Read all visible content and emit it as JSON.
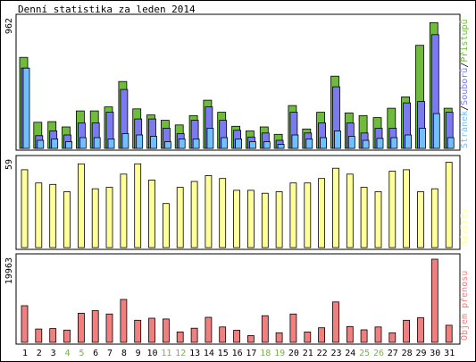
{
  "title": "Denní statistika za leden 2014",
  "chart_data": {
    "type": "bar",
    "categories": [
      "1",
      "2",
      "3",
      "4",
      "5",
      "6",
      "7",
      "8",
      "9",
      "10",
      "11",
      "12",
      "13",
      "14",
      "15",
      "16",
      "17",
      "18",
      "19",
      "20",
      "21",
      "22",
      "23",
      "24",
      "25",
      "26",
      "27",
      "28",
      "29",
      "30",
      "31"
    ],
    "weekend_days": [
      "4",
      "5",
      "11",
      "12",
      "18",
      "19",
      "25",
      "26"
    ],
    "panels": [
      {
        "id": "traffic",
        "max_label": "962",
        "ylim": [
          0,
          962
        ],
        "legend": [
          "Stránek",
          "Souborů",
          "Přístupů"
        ],
        "legend_separators": [
          "/",
          "/"
        ],
        "series": [
          {
            "name": "Přístupů",
            "color": "#6fbb3b",
            "values": [
              680,
              195,
              200,
              160,
              280,
              280,
              310,
              500,
              295,
              250,
              210,
              175,
              245,
              360,
              270,
              165,
              130,
              160,
              105,
              320,
              145,
              270,
              540,
              265,
              245,
              230,
              300,
              385,
              770,
              940,
              300
            ]
          },
          {
            "name": "Souborů",
            "color": "#7b7bef",
            "values": [
              600,
              95,
              130,
              100,
              190,
              190,
              270,
              440,
              220,
              220,
              150,
              110,
              210,
              310,
              210,
              135,
              85,
              115,
              60,
              270,
              115,
              190,
              460,
              190,
              115,
              150,
              150,
              340,
              350,
              850,
              270
            ]
          },
          {
            "name": "Stránek",
            "color": "#70c0ff",
            "values": [
              600,
              60,
              70,
              50,
              80,
              80,
              70,
              110,
              100,
              90,
              50,
              70,
              70,
              150,
              80,
              70,
              50,
              50,
              30,
              100,
              70,
              80,
              130,
              90,
              60,
              75,
              80,
              100,
              150,
              260,
              80
            ]
          }
        ]
      },
      {
        "id": "visits",
        "max_label": "59",
        "ylim": [
          0,
          59
        ],
        "legend": [
          "Návštěv"
        ],
        "series": [
          {
            "name": "Návštěv",
            "color": "#ffff99",
            "values": [
              53,
              44,
              43,
              38,
              57,
              40,
              41,
              50,
              57,
              46,
              30,
              41,
              45,
              49,
              47,
              39,
              39,
              37,
              38,
              44,
              44,
              47,
              54,
              50,
              41,
              38,
              52,
              53,
              38,
              40,
              58
            ]
          }
        ]
      },
      {
        "id": "volume",
        "max_label": "19963",
        "ylim": [
          0,
          19963
        ],
        "legend": [
          "Objem přenosu"
        ],
        "series": [
          {
            "name": "Objem přenosu",
            "color": "#f08080",
            "values": [
              8800,
              3200,
              3300,
              2950,
              7000,
              7600,
              6800,
              10300,
              5300,
              5800,
              5600,
              2500,
              3400,
              6000,
              3700,
              2900,
              1600,
              6400,
              2300,
              6800,
              2500,
              3500,
              9700,
              3800,
              3000,
              3700,
              2300,
              5300,
              5900,
              19963,
              4100
            ]
          }
        ]
      }
    ]
  }
}
